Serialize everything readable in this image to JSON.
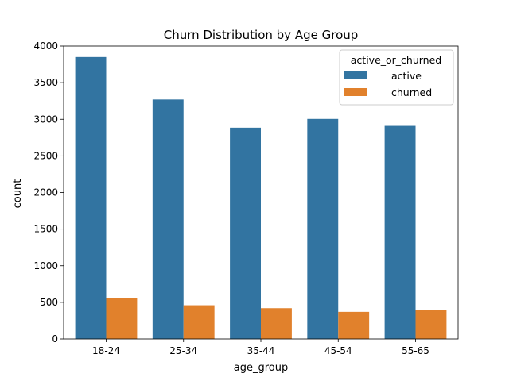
{
  "chart_data": {
    "type": "bar",
    "title": "Churn Distribution by Age Group",
    "xlabel": "age_group",
    "ylabel": "count",
    "categories": [
      "18-24",
      "25-34",
      "35-44",
      "45-54",
      "55-65"
    ],
    "series": [
      {
        "name": "active",
        "color": "#3274a1",
        "values": [
          3850,
          3270,
          2885,
          3005,
          2910
        ]
      },
      {
        "name": "churned",
        "color": "#e1812c",
        "values": [
          560,
          460,
          420,
          370,
          395
        ]
      }
    ],
    "ylim": [
      0,
      4000
    ],
    "yticks": [
      0,
      500,
      1000,
      1500,
      2000,
      2500,
      3000,
      3500,
      4000
    ],
    "grid": false,
    "legend": {
      "title": "active_or_churned",
      "placement": "top-right"
    }
  }
}
